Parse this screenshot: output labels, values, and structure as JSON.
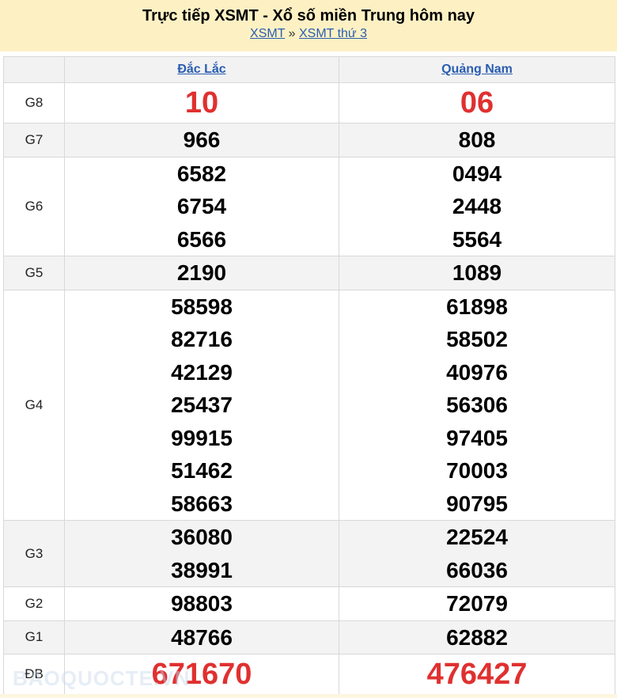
{
  "header": {
    "title": "Trực tiếp XSMT - Xổ số miền Trung hôm nay",
    "breadcrumb": [
      {
        "label": "XSMT"
      },
      {
        "label": "XSMT thứ 3"
      }
    ],
    "separator": "»"
  },
  "colors": {
    "banner": "#fdf1c4",
    "link": "#2a5db0",
    "highlight": "#e03030"
  },
  "provinces": [
    "Đắc Lắc",
    "Quảng Nam"
  ],
  "prizes": [
    {
      "label": "G8",
      "big": true,
      "values": [
        [
          "10"
        ],
        [
          "06"
        ]
      ]
    },
    {
      "label": "G7",
      "values": [
        [
          "966"
        ],
        [
          "808"
        ]
      ]
    },
    {
      "label": "G6",
      "values": [
        [
          "6582",
          "6754",
          "6566"
        ],
        [
          "0494",
          "2448",
          "5564"
        ]
      ]
    },
    {
      "label": "G5",
      "values": [
        [
          "2190"
        ],
        [
          "1089"
        ]
      ]
    },
    {
      "label": "G4",
      "values": [
        [
          "58598",
          "82716",
          "42129",
          "25437",
          "99915",
          "51462",
          "58663"
        ],
        [
          "61898",
          "58502",
          "40976",
          "56306",
          "97405",
          "70003",
          "90795"
        ]
      ]
    },
    {
      "label": "G3",
      "values": [
        [
          "36080",
          "38991"
        ],
        [
          "22524",
          "66036"
        ]
      ]
    },
    {
      "label": "G2",
      "values": [
        [
          "98803"
        ],
        [
          "72079"
        ]
      ]
    },
    {
      "label": "G1",
      "values": [
        [
          "48766"
        ],
        [
          "62882"
        ]
      ]
    },
    {
      "label": "ĐB",
      "big": true,
      "values": [
        [
          "671670"
        ],
        [
          "476427"
        ]
      ]
    }
  ],
  "watermark": "BAOQUOCTE.VN"
}
